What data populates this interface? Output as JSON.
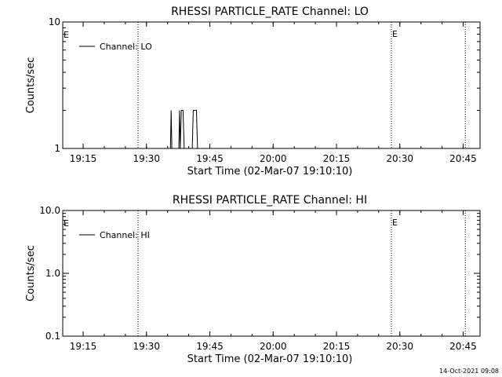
{
  "footer": {
    "timestamp": "14-Oct-2021 09:08"
  },
  "chart_data": [
    {
      "type": "line",
      "title": "RHESSI PARTICLE_RATE Channel: LO",
      "xlabel": "Start Time (02-Mar-07 19:10:10)",
      "ylabel": "Counts/sec",
      "yscale": "log",
      "xlim": [
        "19:10:10",
        "20:49:00"
      ],
      "ylim": [
        1,
        10
      ],
      "xticks": [
        "19:15",
        "19:30",
        "19:45",
        "20:00",
        "20:15",
        "20:30",
        "20:45"
      ],
      "yticks": [
        "1",
        "10"
      ],
      "legend": {
        "label": "Channel: LO",
        "position": "top-left"
      },
      "markers": [
        {
          "time": "19:28:00",
          "label": ""
        },
        {
          "time": "20:28:00",
          "label": "E"
        },
        {
          "time": "20:45:30",
          "label": ""
        }
      ],
      "start_marker_label": "E",
      "series": [
        {
          "name": "Channel: LO",
          "points": [
            [
              "19:10:10",
              1
            ],
            [
              "19:35:40",
              1
            ],
            [
              "19:35:50",
              2
            ],
            [
              "19:36:00",
              1
            ],
            [
              "19:37:40",
              1
            ],
            [
              "19:37:50",
              2
            ],
            [
              "19:38:00",
              1
            ],
            [
              "19:38:15",
              2
            ],
            [
              "19:38:40",
              2
            ],
            [
              "19:38:55",
              1
            ],
            [
              "19:40:50",
              1
            ],
            [
              "19:41:05",
              2
            ],
            [
              "19:41:50",
              2
            ],
            [
              "19:42:05",
              1
            ],
            [
              "20:49:00",
              1
            ]
          ]
        }
      ]
    },
    {
      "type": "line",
      "title": "RHESSI PARTICLE_RATE Channel: HI",
      "xlabel": "Start Time (02-Mar-07 19:10:10)",
      "ylabel": "Counts/sec",
      "yscale": "log",
      "xlim": [
        "19:10:10",
        "20:49:00"
      ],
      "ylim": [
        0.1,
        10
      ],
      "xticks": [
        "19:15",
        "19:30",
        "19:45",
        "20:00",
        "20:15",
        "20:30",
        "20:45"
      ],
      "yticks": [
        "0.1",
        "1.0",
        "10.0"
      ],
      "legend": {
        "label": "Channel: HI",
        "position": "top-left"
      },
      "markers": [
        {
          "time": "19:28:00",
          "label": ""
        },
        {
          "time": "20:28:00",
          "label": "E"
        },
        {
          "time": "20:45:30",
          "label": ""
        }
      ],
      "start_marker_label": "E",
      "series": [
        {
          "name": "Channel: HI",
          "points": []
        }
      ]
    }
  ]
}
